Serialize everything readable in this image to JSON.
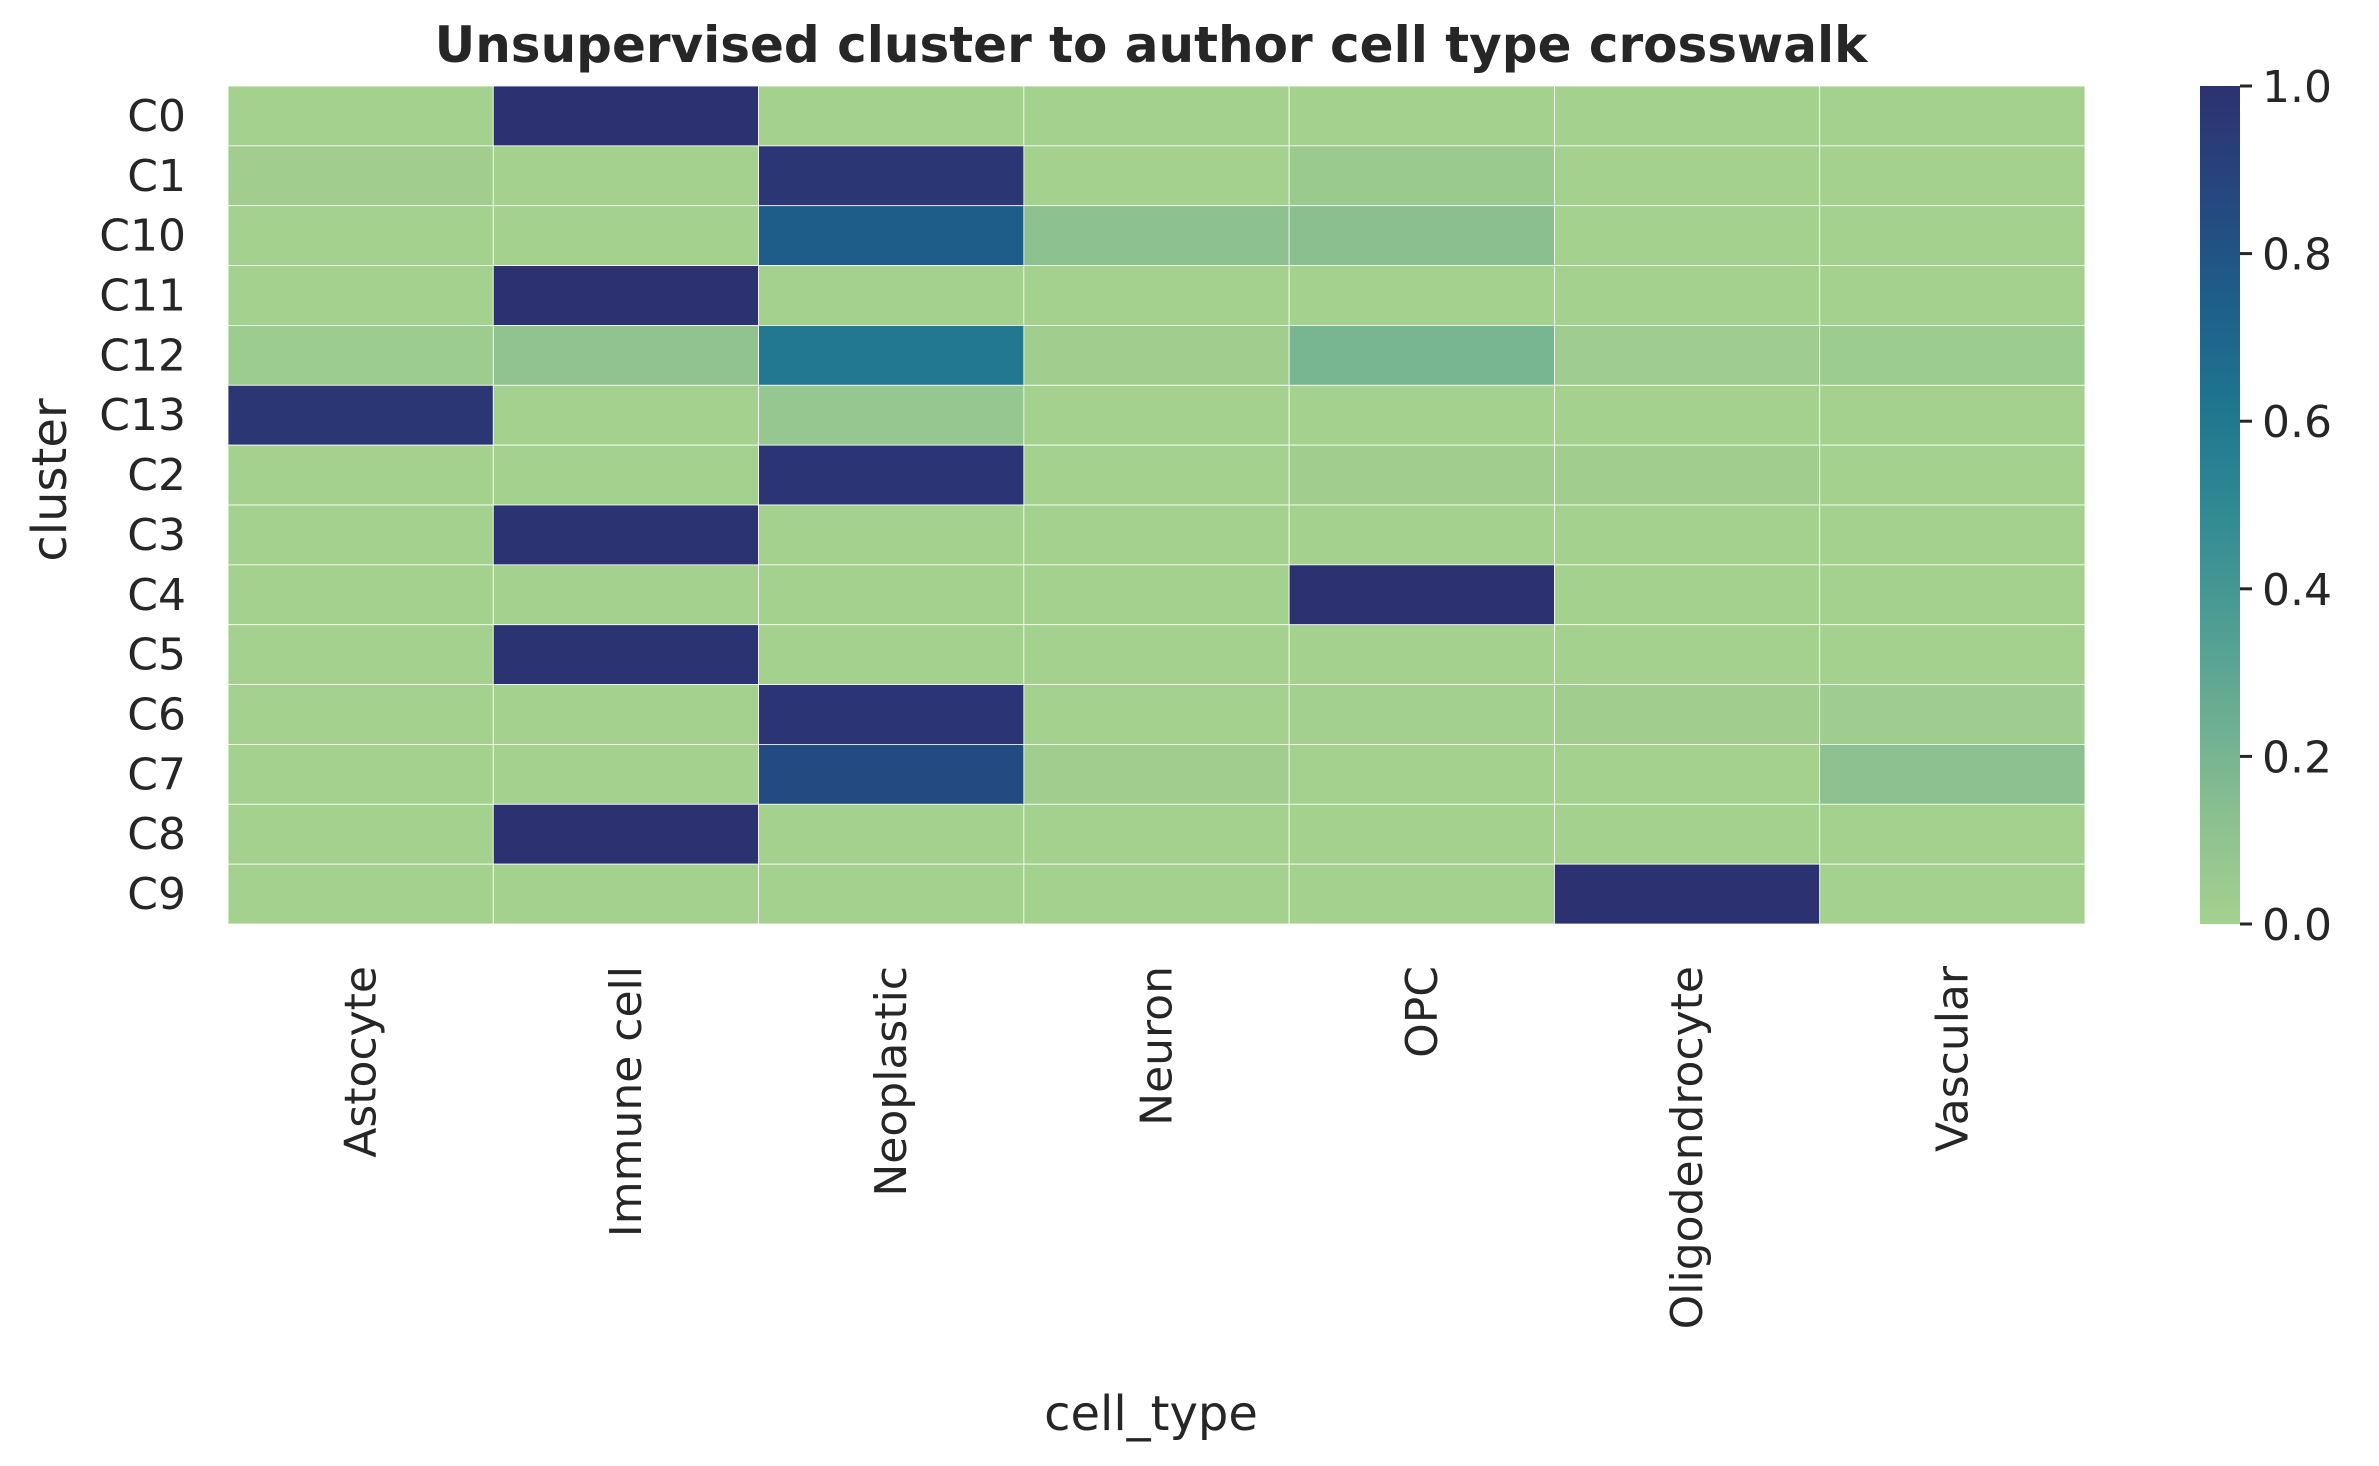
{
  "chart_data": {
    "type": "heatmap",
    "title": "Unsupervised cluster to author cell type crosswalk",
    "xlabel": "cell_type",
    "ylabel": "cluster",
    "x_categories": [
      "Astocyte",
      "Immune cell",
      "Neoplastic",
      "Neuron",
      "OPC",
      "Oligodendrocyte",
      "Vascular"
    ],
    "y_categories": [
      "C0",
      "C1",
      "C10",
      "C11",
      "C12",
      "C13",
      "C2",
      "C3",
      "C4",
      "C5",
      "C6",
      "C7",
      "C8",
      "C9"
    ],
    "values": [
      [
        0.0,
        1.0,
        0.0,
        0.0,
        0.0,
        0.0,
        0.0
      ],
      [
        0.02,
        0.0,
        0.97,
        0.0,
        0.05,
        0.0,
        0.0
      ],
      [
        0.0,
        0.0,
        0.75,
        0.12,
        0.13,
        0.0,
        0.0
      ],
      [
        0.0,
        1.0,
        0.0,
        0.0,
        0.0,
        0.0,
        0.0
      ],
      [
        0.04,
        0.1,
        0.6,
        0.02,
        0.2,
        0.03,
        0.04
      ],
      [
        0.97,
        0.0,
        0.07,
        0.0,
        0.0,
        0.0,
        0.0
      ],
      [
        0.0,
        0.0,
        0.98,
        0.0,
        0.02,
        0.02,
        0.0
      ],
      [
        0.0,
        0.99,
        0.0,
        0.0,
        0.0,
        0.0,
        0.0
      ],
      [
        0.0,
        0.0,
        0.0,
        0.0,
        1.0,
        0.0,
        0.0
      ],
      [
        0.0,
        0.99,
        0.0,
        0.0,
        0.0,
        0.0,
        0.0
      ],
      [
        0.0,
        0.0,
        0.98,
        0.0,
        0.01,
        0.02,
        0.03
      ],
      [
        0.0,
        0.0,
        0.85,
        0.02,
        0.0,
        0.0,
        0.12
      ],
      [
        0.0,
        1.0,
        0.0,
        0.0,
        0.0,
        0.0,
        0.0
      ],
      [
        0.0,
        0.0,
        0.0,
        0.0,
        0.0,
        1.0,
        0.0
      ]
    ],
    "vmin": 0.0,
    "vmax": 1.0,
    "colorbar_ticks": [
      "0.0",
      "0.2",
      "0.4",
      "0.6",
      "0.8",
      "1.0"
    ],
    "colormap": "crest",
    "colormap_stops": [
      "#a5d18f",
      "#8cc090",
      "#6aad92",
      "#4a9b93",
      "#2f8893",
      "#1f748f",
      "#1e5d89",
      "#26467f",
      "#2c3172"
    ],
    "grid": false,
    "cell_border_color": "#ffffff"
  }
}
